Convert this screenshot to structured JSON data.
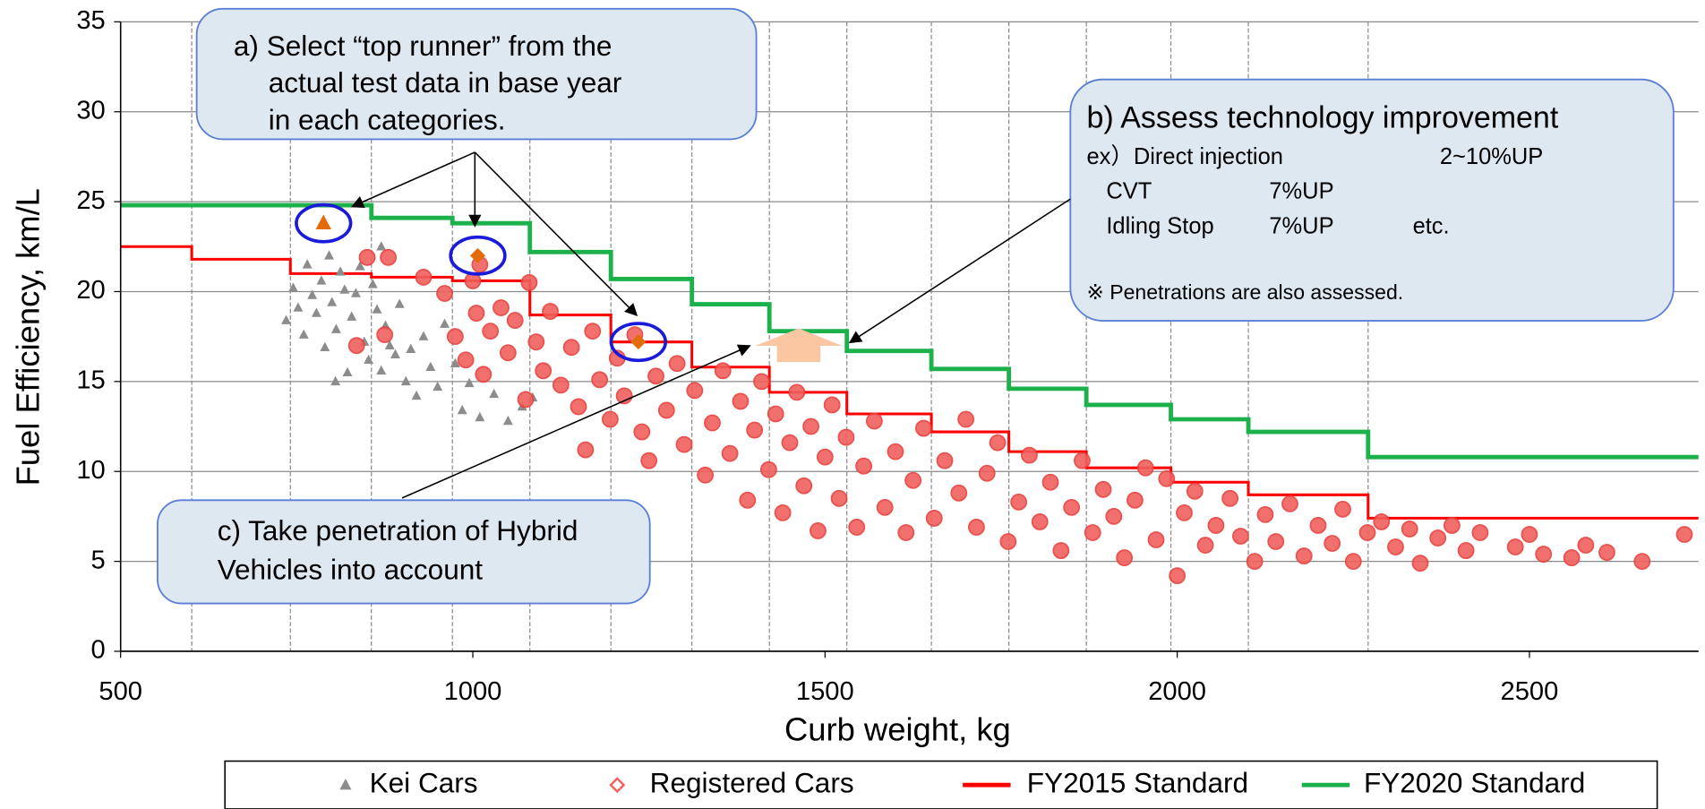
{
  "chart_data": {
    "type": "scatter",
    "x_label": "Curb weight, kg",
    "y_label": "Fuel Efficiency, km/L",
    "xlim": [
      500,
      2740
    ],
    "ylim": [
      0,
      35
    ],
    "xticks": [
      500,
      1000,
      1500,
      2000,
      2500
    ],
    "yticks": [
      0,
      5,
      10,
      15,
      20,
      25,
      30,
      35
    ],
    "grid": true,
    "legend": "bottom",
    "series": [
      {
        "name": "Kei Cars",
        "type": "scatter",
        "marker": "triangle",
        "color": "#8c8c8c",
        "x": [
          735,
          745,
          752,
          760,
          765,
          772,
          778,
          785,
          790,
          796,
          800,
          806,
          812,
          818,
          822,
          828,
          834,
          840,
          846,
          852,
          858,
          864,
          870,
          876,
          882,
          890,
          896,
          905,
          912,
          920,
          930,
          940,
          950,
          960,
          975,
          985,
          995,
          1010,
          1030,
          1050,
          1070,
          1085,
          870,
          805
        ],
        "values": [
          18.4,
          20.2,
          19.1,
          17.6,
          21.5,
          19.8,
          18.8,
          20.6,
          16.9,
          22.0,
          19.4,
          17.9,
          21.1,
          20.1,
          15.5,
          18.6,
          19.9,
          21.4,
          17.2,
          16.2,
          20.4,
          19.0,
          15.6,
          18.1,
          17.0,
          16.5,
          19.3,
          15.0,
          16.8,
          14.2,
          17.5,
          15.8,
          14.7,
          18.2,
          16.0,
          13.4,
          14.9,
          13.0,
          14.3,
          12.8,
          13.6,
          14.1,
          22.5,
          15.0
        ]
      },
      {
        "name": "Registered Cars",
        "type": "scatter",
        "marker": "circle",
        "color": "#f0605d",
        "x": [
          835,
          850,
          875,
          880,
          930,
          960,
          975,
          990,
          1000,
          1005,
          1010,
          1015,
          1025,
          1040,
          1050,
          1060,
          1075,
          1080,
          1090,
          1100,
          1110,
          1125,
          1140,
          1150,
          1160,
          1170,
          1180,
          1195,
          1205,
          1215,
          1230,
          1240,
          1250,
          1260,
          1275,
          1290,
          1300,
          1315,
          1330,
          1340,
          1355,
          1365,
          1380,
          1390,
          1400,
          1410,
          1420,
          1430,
          1440,
          1450,
          1460,
          1470,
          1480,
          1490,
          1500,
          1510,
          1520,
          1530,
          1545,
          1555,
          1570,
          1585,
          1600,
          1615,
          1625,
          1640,
          1655,
          1670,
          1690,
          1700,
          1715,
          1730,
          1745,
          1760,
          1775,
          1790,
          1805,
          1820,
          1835,
          1850,
          1865,
          1880,
          1895,
          1910,
          1925,
          1940,
          1955,
          1970,
          1985,
          2000,
          2010,
          2025,
          2040,
          2055,
          2075,
          2090,
          2110,
          2125,
          2140,
          2160,
          2180,
          2200,
          2220,
          2235,
          2250,
          2270,
          2290,
          2310,
          2330,
          2345,
          2370,
          2390,
          2410,
          2430,
          2480,
          2500,
          2520,
          2560,
          2580,
          2610,
          2660,
          2720
        ],
        "values": [
          17.0,
          21.9,
          17.6,
          21.9,
          20.8,
          19.9,
          17.5,
          16.2,
          20.6,
          18.8,
          21.5,
          15.4,
          17.8,
          19.1,
          16.6,
          18.4,
          14.0,
          20.5,
          17.2,
          15.6,
          18.9,
          14.8,
          16.9,
          13.6,
          11.2,
          17.8,
          15.1,
          12.9,
          16.3,
          14.2,
          17.6,
          12.2,
          10.6,
          15.3,
          13.4,
          16.0,
          11.5,
          14.5,
          9.8,
          12.7,
          15.6,
          11.0,
          13.9,
          8.4,
          12.3,
          15.0,
          10.1,
          13.2,
          7.7,
          11.6,
          14.4,
          9.2,
          12.5,
          6.7,
          10.8,
          13.7,
          8.5,
          11.9,
          6.9,
          10.3,
          12.8,
          8.0,
          11.1,
          6.6,
          9.5,
          12.4,
          7.4,
          10.6,
          8.8,
          12.9,
          6.9,
          9.9,
          11.6,
          6.1,
          8.3,
          10.9,
          7.2,
          9.4,
          5.6,
          8.0,
          10.6,
          6.6,
          9.0,
          7.5,
          5.2,
          8.4,
          10.2,
          6.2,
          9.6,
          4.2,
          7.7,
          8.9,
          5.9,
          7.0,
          8.5,
          6.4,
          5.0,
          7.6,
          6.1,
          8.2,
          5.3,
          7.0,
          6.0,
          7.9,
          5.0,
          6.6,
          7.2,
          5.8,
          6.8,
          4.9,
          6.3,
          7.0,
          5.6,
          6.6,
          5.8,
          6.5,
          5.4,
          5.2,
          5.9,
          5.5,
          5.0,
          6.5
        ]
      },
      {
        "name": "FY2015 Standard",
        "type": "line",
        "step": "post",
        "color": "#ff0000",
        "x": [
          500,
          601,
          741,
          856,
          971,
          1081,
          1196,
          1311,
          1421,
          1531,
          1651,
          1761,
          1871,
          1991,
          2101,
          2271
        ],
        "values": [
          22.5,
          21.8,
          21.0,
          20.8,
          20.6,
          18.7,
          17.2,
          15.8,
          14.4,
          13.2,
          12.2,
          11.1,
          10.2,
          9.4,
          8.7,
          7.4
        ]
      },
      {
        "name": "FY2020 Standard",
        "type": "line",
        "step": "post",
        "color": "#1db14b",
        "x": [
          500,
          856,
          971,
          1081,
          1196,
          1311,
          1421,
          1531,
          1651,
          1761,
          1871,
          1991,
          2101,
          2271
        ],
        "values": [
          24.8,
          24.1,
          23.8,
          22.2,
          20.7,
          19.3,
          17.8,
          16.7,
          15.7,
          14.6,
          13.7,
          12.9,
          12.2,
          10.8
        ]
      }
    ],
    "highlights": [
      {
        "x": 788,
        "value": 23.8,
        "marker": "triangle",
        "color": "#e36c0a"
      },
      {
        "x": 1007,
        "value": 22.0,
        "marker": "diamond",
        "color": "#e36c0a"
      },
      {
        "x": 1235,
        "value": 17.2,
        "marker": "diamond",
        "color": "#e36c0a"
      }
    ],
    "annotations": {
      "a": [
        "a) Select “top runner” from the",
        "actual test data in base year",
        "in each categories."
      ],
      "b": {
        "title": "b)  Assess technology improvement",
        "rows": [
          [
            "ex）Direct injection",
            "2~10%UP"
          ],
          [
            "CVT",
            "7%UP"
          ],
          [
            "Idling Stop",
            "7%UP",
            "etc."
          ]
        ],
        "note": "※ Penetrations are also assessed."
      },
      "c": [
        "c) Take penetration of Hybrid",
        "Vehicles into account"
      ]
    }
  }
}
